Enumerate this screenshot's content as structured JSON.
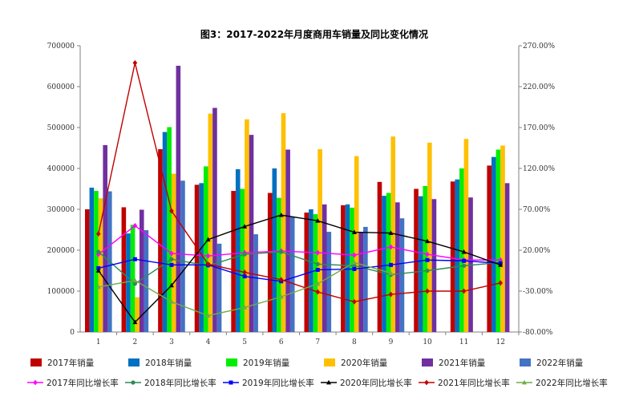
{
  "chart_data": {
    "type": "bar",
    "title": "图3：2017-2022年月度商用车销量及同比变化情况",
    "categories": [
      "1",
      "2",
      "3",
      "4",
      "5",
      "6",
      "7",
      "8",
      "9",
      "10",
      "11",
      "12"
    ],
    "y_left": {
      "min": 0,
      "max": 700000,
      "ticks": [
        "0",
        "100000",
        "200000",
        "300000",
        "400000",
        "500000",
        "600000",
        "700000"
      ]
    },
    "y_right": {
      "min": -80,
      "max": 270,
      "ticks": [
        "-80.00%",
        "-30.00%",
        "20.00%",
        "70.00%",
        "120.00%",
        "170.00%",
        "220.00%",
        "270.00%"
      ]
    },
    "grid": false,
    "legend_position": "bottom",
    "bar_series": [
      {
        "name": "2017年销量",
        "color": "#C00000",
        "values": [
          300000,
          305000,
          447000,
          360000,
          345000,
          340000,
          292000,
          310000,
          367000,
          350000,
          368000,
          407000
        ]
      },
      {
        "name": "2018年销量",
        "color": "#0070C0",
        "values": [
          353000,
          241000,
          489000,
          364000,
          398000,
          400000,
          300000,
          312000,
          333000,
          332000,
          373000,
          428000
        ]
      },
      {
        "name": "2019年销量",
        "color": "#00EE00",
        "values": [
          345000,
          262000,
          501000,
          405000,
          350000,
          328000,
          288000,
          304000,
          340000,
          357000,
          400000,
          446000
        ]
      },
      {
        "name": "2020年销量",
        "color": "#FFC000",
        "values": [
          327000,
          85000,
          387000,
          534000,
          520000,
          535000,
          447000,
          430000,
          478000,
          463000,
          472000,
          456000
        ]
      },
      {
        "name": "2021年销量",
        "color": "#7030A0",
        "values": [
          457000,
          299000,
          651000,
          548000,
          482000,
          446000,
          312000,
          245000,
          317000,
          325000,
          329000,
          364000
        ]
      },
      {
        "name": "2022年销量",
        "color": "#4472C4",
        "values": [
          344000,
          249000,
          370000,
          216000,
          239000,
          282000,
          245000,
          257000,
          278000,
          null,
          null,
          null
        ]
      }
    ],
    "line_series": [
      {
        "name": "2017年同比增长率",
        "color": "#FF00FF",
        "marker": "diamond",
        "values": [
          15,
          50,
          16,
          13,
          17,
          19,
          17,
          14,
          24,
          15,
          8,
          8
        ]
      },
      {
        "name": "2018年同比增长率",
        "color": "#2E8B57",
        "marker": "circle",
        "values": [
          18,
          -21,
          9,
          1,
          15,
          18,
          3,
          1,
          -10,
          -5,
          1,
          5
        ]
      },
      {
        "name": "2019年同比增长率",
        "color": "#0000FF",
        "marker": "square",
        "values": [
          -2,
          9,
          2,
          2,
          -12,
          -18,
          -4,
          -3,
          2,
          8,
          7,
          4
        ]
      },
      {
        "name": "2020年同比增长率",
        "color": "#000000",
        "marker": "triangle",
        "values": [
          -5,
          -68,
          -23,
          33,
          49,
          63,
          56,
          42,
          41,
          31,
          18,
          2
        ]
      },
      {
        "name": "2021年同比增长率",
        "color": "#C00000",
        "marker": "diamond",
        "values": [
          40,
          249,
          68,
          3,
          -7,
          -16,
          -31,
          -43,
          -34,
          -30,
          -30,
          -20
        ]
      },
      {
        "name": "2022年同比增长率",
        "color": "#70AD47",
        "marker": "triangle",
        "values": [
          -25,
          -17,
          -43,
          -60,
          -50,
          -37,
          -21,
          5,
          -8,
          null,
          null,
          null
        ]
      }
    ]
  }
}
